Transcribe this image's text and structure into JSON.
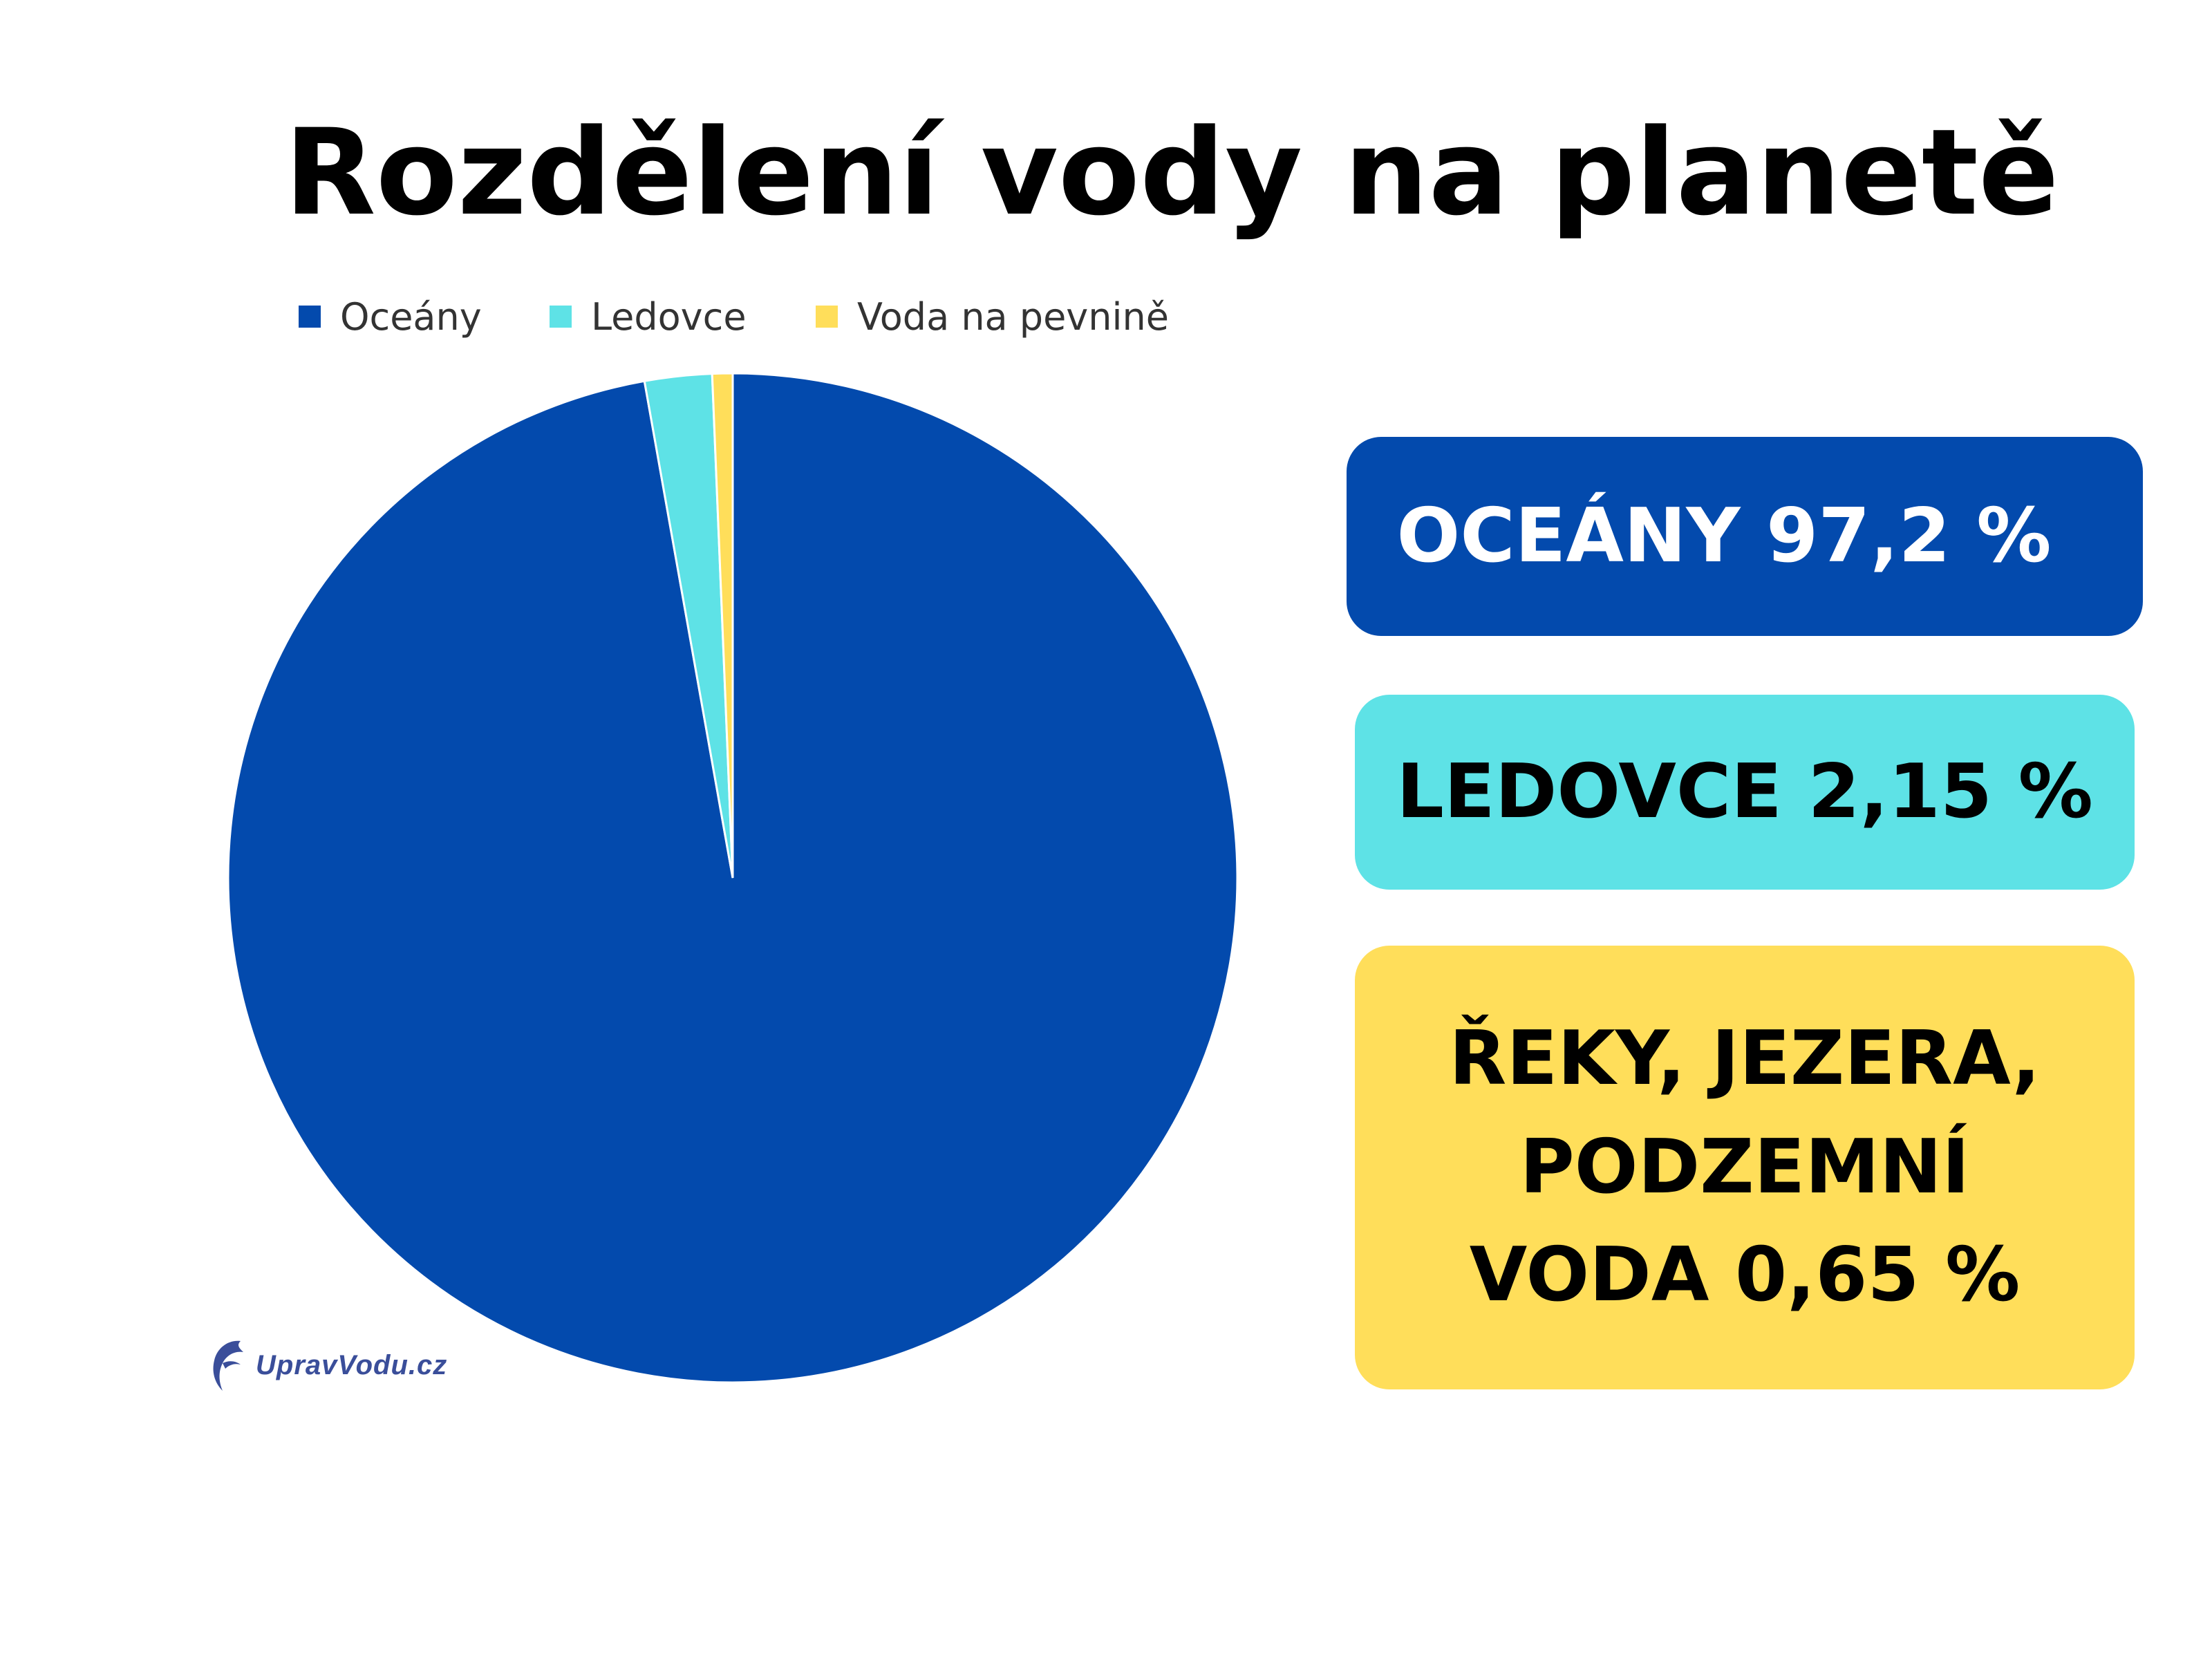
{
  "title": "Rozdělení vody na planetě",
  "colors": {
    "oceans": "#034AAD",
    "glaciers": "#5EE2E6",
    "land_water": "#FFDE5A",
    "logo": "#3A4E9A"
  },
  "chart_data": {
    "type": "pie",
    "title": "Rozdělení vody na planetě",
    "legend_position": "top",
    "categories": [
      "Oceány",
      "Ledovce",
      "Voda na pevnině"
    ],
    "values": [
      97.2,
      2.15,
      0.65
    ],
    "unit": "%"
  },
  "legend": [
    {
      "label": "Oceány"
    },
    {
      "label": "Ledovce"
    },
    {
      "label": "Voda na pevnině"
    }
  ],
  "stats": {
    "oceans": "OCEÁNY 97,2 %",
    "glaciers": "LEDOVCE 2,15 %",
    "land_line1": "ŘEKY, JEZERA,",
    "land_line2": "PODZEMNÍ",
    "land_line3": "VODA 0,65 %"
  },
  "logo": {
    "text": "UpravVodu.cz",
    "icon": "dolphin-icon"
  }
}
